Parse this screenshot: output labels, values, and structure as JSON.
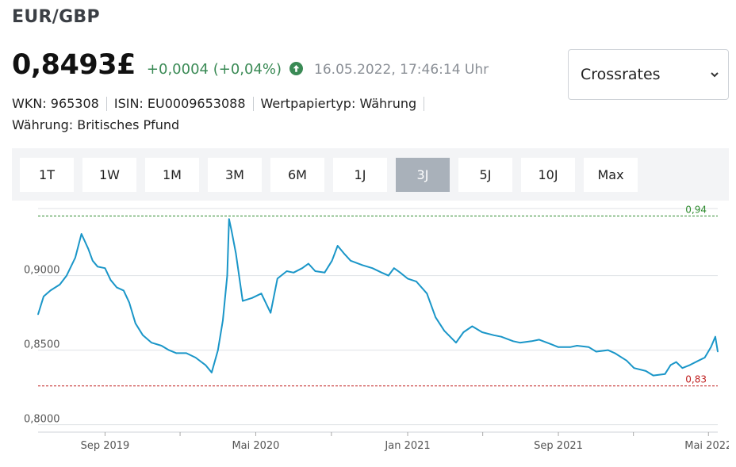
{
  "header": {
    "title": "EUR/GBP",
    "price": "0,8493£",
    "change": "+0,0004 (+0,04%)",
    "timestamp": "16.05.2022, 17:46:14 Uhr",
    "change_color": "#3a8a55",
    "icon": "arrow-up-circle-icon"
  },
  "select": {
    "value": "Crossrates",
    "icon": "chevron-down-icon"
  },
  "meta": {
    "wkn": "WKN: 965308",
    "isin": "ISIN: EU0009653088",
    "type": "Wertpapiertyp: Währung",
    "currency": "Währung: Britisches Pfund"
  },
  "ranges": {
    "buttons": [
      "1T",
      "1W",
      "1M",
      "3M",
      "6M",
      "1J",
      "3J",
      "5J",
      "10J",
      "Max"
    ],
    "active": "3J",
    "active_color": "#a9b1ba"
  },
  "chart_data": {
    "type": "line",
    "title": "",
    "xlabel": "",
    "ylabel": "",
    "ylim": [
      0.795,
      0.945
    ],
    "y_ticks": [
      "0,9000",
      "0,8500",
      "0,8000"
    ],
    "y_tick_values": [
      0.9,
      0.85,
      0.8
    ],
    "x_ticks": [
      "Sep 2019",
      "Mai 2020",
      "Jan 2021",
      "Sep 2021",
      "Mai 2022"
    ],
    "x_tick_dates": [
      "2019-09-01",
      "2020-05-01",
      "2021-01-01",
      "2021-09-01",
      "2022-05-01"
    ],
    "reference_lines": [
      {
        "label": "0,94",
        "value": 0.94,
        "color": "#2e8b2e",
        "style": "dashed"
      },
      {
        "label": "0,83",
        "value": 0.826,
        "color": "#c02020",
        "style": "dashed"
      }
    ],
    "grid": "horizontal",
    "series_color": "#1a96c8",
    "series": [
      {
        "x": [
          "2019-05-16",
          "2019-05-25",
          "2019-06-05",
          "2019-06-20",
          "2019-07-01",
          "2019-07-15",
          "2019-07-25",
          "2019-08-05",
          "2019-08-12",
          "2019-08-20",
          "2019-09-01",
          "2019-09-10",
          "2019-09-20",
          "2019-10-01",
          "2019-10-10",
          "2019-10-20",
          "2019-11-01",
          "2019-11-15",
          "2019-12-01",
          "2019-12-13",
          "2019-12-25",
          "2020-01-10",
          "2020-01-25",
          "2020-02-10",
          "2020-02-20",
          "2020-03-01",
          "2020-03-09",
          "2020-03-16",
          "2020-03-19",
          "2020-03-23",
          "2020-03-30",
          "2020-04-10",
          "2020-04-25",
          "2020-05-10",
          "2020-05-25",
          "2020-06-05",
          "2020-06-20",
          "2020-07-01",
          "2020-07-15",
          "2020-07-25",
          "2020-08-05",
          "2020-08-20",
          "2020-09-01",
          "2020-09-10",
          "2020-09-20",
          "2020-10-01",
          "2020-10-20",
          "2020-11-05",
          "2020-11-20",
          "2020-12-01",
          "2020-12-10",
          "2020-12-20",
          "2021-01-01",
          "2021-01-15",
          "2021-02-01",
          "2021-02-15",
          "2021-03-01",
          "2021-03-20",
          "2021-04-01",
          "2021-04-15",
          "2021-05-01",
          "2021-05-20",
          "2021-06-01",
          "2021-06-20",
          "2021-07-01",
          "2021-07-20",
          "2021-08-01",
          "2021-08-20",
          "2021-09-01",
          "2021-09-20",
          "2021-10-01",
          "2021-10-20",
          "2021-11-01",
          "2021-11-20",
          "2021-12-01",
          "2021-12-20",
          "2022-01-01",
          "2022-01-20",
          "2022-02-01",
          "2022-02-20",
          "2022-03-01",
          "2022-03-10",
          "2022-03-20",
          "2022-04-01",
          "2022-04-15",
          "2022-04-25",
          "2022-05-05",
          "2022-05-12",
          "2022-05-16"
        ],
        "y": [
          0.874,
          0.886,
          0.89,
          0.894,
          0.9,
          0.912,
          0.928,
          0.918,
          0.91,
          0.906,
          0.905,
          0.897,
          0.892,
          0.89,
          0.882,
          0.868,
          0.86,
          0.855,
          0.853,
          0.85,
          0.848,
          0.848,
          0.845,
          0.84,
          0.835,
          0.85,
          0.87,
          0.9,
          0.938,
          0.93,
          0.915,
          0.883,
          0.885,
          0.888,
          0.875,
          0.898,
          0.903,
          0.902,
          0.905,
          0.908,
          0.903,
          0.902,
          0.91,
          0.92,
          0.915,
          0.91,
          0.907,
          0.905,
          0.902,
          0.9,
          0.905,
          0.902,
          0.898,
          0.896,
          0.888,
          0.872,
          0.863,
          0.855,
          0.862,
          0.866,
          0.862,
          0.86,
          0.859,
          0.856,
          0.855,
          0.856,
          0.857,
          0.854,
          0.852,
          0.852,
          0.853,
          0.852,
          0.849,
          0.85,
          0.848,
          0.843,
          0.838,
          0.836,
          0.833,
          0.834,
          0.84,
          0.842,
          0.838,
          0.84,
          0.843,
          0.845,
          0.852,
          0.859,
          0.849
        ]
      }
    ]
  }
}
